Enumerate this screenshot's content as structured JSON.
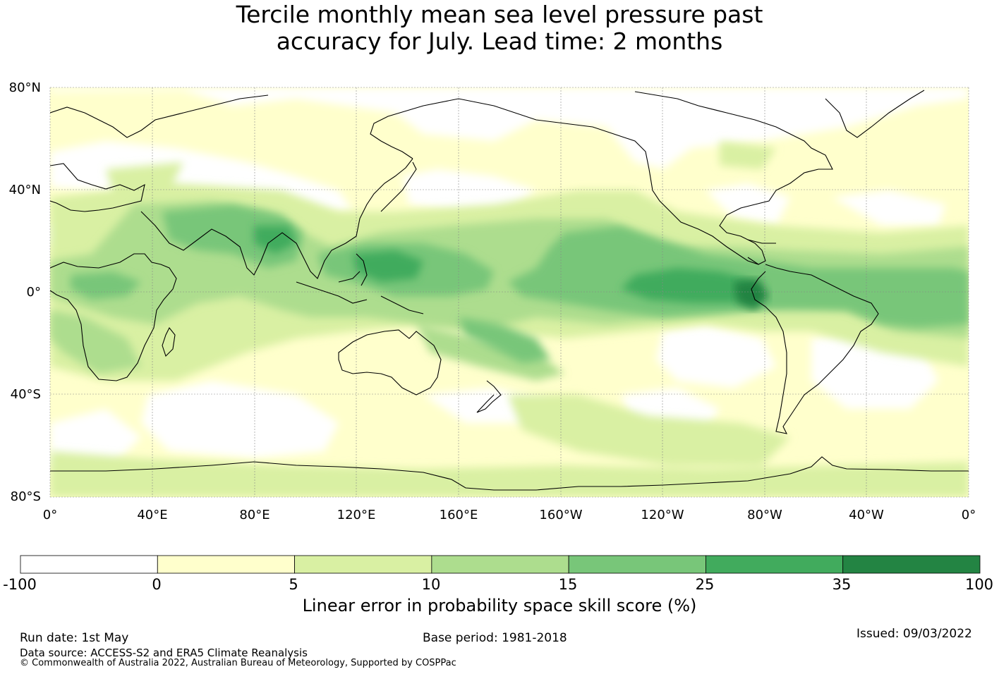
{
  "title": {
    "line1": "Tercile monthly mean sea level pressure past",
    "line2": "accuracy for July. Lead time: 2 months"
  },
  "map": {
    "lat_labels": [
      "80°N",
      "40°N",
      "0°",
      "40°S",
      "80°S"
    ],
    "lon_labels": [
      "0°",
      "40°E",
      "80°E",
      "120°E",
      "160°E",
      "160°W",
      "120°W",
      "80°W",
      "40°W",
      "0°"
    ],
    "ocean_color": "#ffffff",
    "gridlines": true
  },
  "colorbar": {
    "ticks": [
      "-100",
      "0",
      "5",
      "10",
      "15",
      "25",
      "35",
      "100"
    ],
    "colors": [
      "#ffffff",
      "#ffffcc",
      "#d9f0a3",
      "#addd8e",
      "#78c679",
      "#41ab5d",
      "#238443"
    ],
    "label": "Linear error in probability space skill score (%)"
  },
  "footer": {
    "run_date": "Run date: 1st May",
    "base_period": "Base period: 1981-2018",
    "issued": "Issued: 09/03/2022",
    "data_source": "Data source: ACCESS-S2 and ERA5 Climate Reanalysis",
    "copyright": "© Commonwealth of Australia 2022, Australian Bureau of Meteorology, Supported by COSPPac"
  }
}
